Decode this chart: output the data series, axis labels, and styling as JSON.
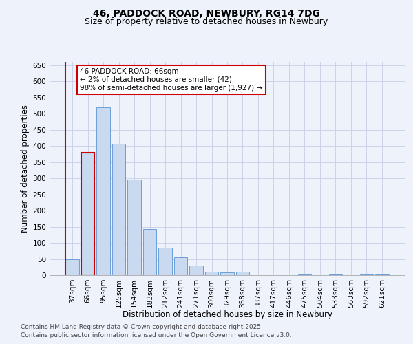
{
  "title_line1": "46, PADDOCK ROAD, NEWBURY, RG14 7DG",
  "title_line2": "Size of property relative to detached houses in Newbury",
  "xlabel": "Distribution of detached houses by size in Newbury",
  "ylabel": "Number of detached properties",
  "categories": [
    "37sqm",
    "66sqm",
    "95sqm",
    "125sqm",
    "154sqm",
    "183sqm",
    "212sqm",
    "241sqm",
    "271sqm",
    "300sqm",
    "329sqm",
    "358sqm",
    "387sqm",
    "417sqm",
    "446sqm",
    "475sqm",
    "504sqm",
    "533sqm",
    "563sqm",
    "592sqm",
    "621sqm"
  ],
  "values": [
    50,
    380,
    520,
    407,
    295,
    143,
    85,
    55,
    30,
    11,
    9,
    11,
    1,
    3,
    1,
    4,
    0,
    4,
    0,
    4,
    4
  ],
  "bar_color": "#c9d9ef",
  "bar_edge_color": "#6a9fd8",
  "highlight_bar_index": 1,
  "highlight_line_color": "#cc0000",
  "annotation_text": "46 PADDOCK ROAD: 66sqm\n← 2% of detached houses are smaller (42)\n98% of semi-detached houses are larger (1,927) →",
  "annotation_box_color": "#ffffff",
  "annotation_box_edge_color": "#cc0000",
  "ylim": [
    0,
    660
  ],
  "yticks": [
    0,
    50,
    100,
    150,
    200,
    250,
    300,
    350,
    400,
    450,
    500,
    550,
    600,
    650
  ],
  "footer_line1": "Contains HM Land Registry data © Crown copyright and database right 2025.",
  "footer_line2": "Contains public sector information licensed under the Open Government Licence v3.0.",
  "background_color": "#eef2fb",
  "grid_color": "#c8cce8",
  "title_fontsize": 10,
  "subtitle_fontsize": 9,
  "axis_label_fontsize": 8.5,
  "tick_fontsize": 7.5,
  "annotation_fontsize": 7.5,
  "footer_fontsize": 6.5
}
